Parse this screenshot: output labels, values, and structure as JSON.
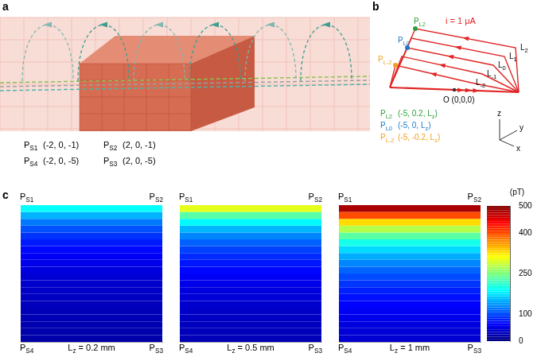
{
  "panel_labels": [
    "a",
    "b",
    "c"
  ],
  "panel_a": {
    "points": [
      {
        "label": [
          "P",
          {
            "sub": "S1"
          }
        ],
        "coord": "(-2, 0, -1)"
      },
      {
        "label": [
          "P",
          {
            "sub": "S2"
          }
        ],
        "coord": "(2, 0, -1)"
      },
      {
        "label": [
          "P",
          {
            "sub": "S4"
          }
        ],
        "coord": "(-2, 0, -5)"
      },
      {
        "label": [
          "P",
          {
            "sub": "S3"
          }
        ],
        "coord": "(2, 0, -5)"
      }
    ]
  },
  "panel_b": {
    "current": "i = 1 μA",
    "lines": [
      [
        "L",
        {
          "sub": "2"
        }
      ],
      [
        "L",
        {
          "sub": "1"
        }
      ],
      [
        "L",
        {
          "sub": "0"
        }
      ],
      [
        "L",
        {
          "sub": "-1"
        }
      ],
      [
        "L",
        {
          "sub": "-2"
        }
      ]
    ],
    "origin": "O (0,0,0)",
    "axes": [
      "x",
      "y",
      "z"
    ],
    "points": [
      {
        "label": [
          "P",
          {
            "sub": "L2"
          }
        ],
        "coord": [
          "(-5, 0.2, L",
          {
            "sub": "z"
          },
          ")"
        ],
        "color": "#2e9e3a"
      },
      {
        "label": [
          "P",
          {
            "sub": "L0"
          }
        ],
        "coord": [
          "(-5, 0, L",
          {
            "sub": "z"
          },
          ")"
        ],
        "color": "#1f78c8"
      },
      {
        "label": [
          "P",
          {
            "sub": "L-2"
          }
        ],
        "coord": [
          "(-5, -0.2, L",
          {
            "sub": "z"
          },
          ")"
        ],
        "color": "#f0a020"
      }
    ]
  },
  "chart_data": {
    "type": "heatmap",
    "xlim": [
      -2,
      2
    ],
    "ylim": [
      -5,
      -1
    ],
    "tick_labels": false,
    "corners": [
      [
        "P",
        {
          "sub": "S1"
        }
      ],
      [
        "P",
        {
          "sub": "S2"
        }
      ],
      [
        "P",
        {
          "sub": "S4"
        }
      ],
      [
        "P",
        {
          "sub": "S3"
        }
      ]
    ],
    "panels": [
      {
        "title": [
          "L",
          {
            "sub": "z"
          },
          " = 0.2 mm"
        ],
        "z": [
          -1.1,
          -1.3,
          -1.5,
          -1.7,
          -1.9,
          -2.1,
          -2.3,
          -2.5,
          -2.7,
          -2.9,
          -3.1,
          -3.3,
          -3.5,
          -3.7,
          -3.9,
          -4.1,
          -4.3,
          -4.5,
          -4.7,
          -4.9
        ],
        "values": [
          190,
          150,
          122,
          102,
          87,
          75,
          66,
          58,
          52,
          47,
          42,
          38,
          35,
          32,
          30,
          28,
          26,
          24,
          22,
          21
        ]
      },
      {
        "title": [
          "L",
          {
            "sub": "z"
          },
          " = 0.5 mm"
        ],
        "z": [
          -1.1,
          -1.3,
          -1.5,
          -1.7,
          -1.9,
          -2.1,
          -2.3,
          -2.5,
          -2.7,
          -2.9,
          -3.1,
          -3.3,
          -3.5,
          -3.7,
          -3.9,
          -4.1,
          -4.3,
          -4.5,
          -4.7,
          -4.9
        ],
        "values": [
          300,
          230,
          185,
          152,
          128,
          110,
          95,
          83,
          73,
          65,
          58,
          52,
          47,
          43,
          39,
          36,
          33,
          31,
          29,
          27
        ]
      },
      {
        "title": [
          "L",
          {
            "sub": "z"
          },
          " = 1 mm"
        ],
        "z": [
          -1.1,
          -1.3,
          -1.5,
          -1.7,
          -1.9,
          -2.1,
          -2.3,
          -2.5,
          -2.7,
          -2.9,
          -3.1,
          -3.3,
          -3.5,
          -3.7,
          -3.9,
          -4.1,
          -4.3,
          -4.5,
          -4.7,
          -4.9
        ],
        "values": [
          480,
          400,
          330,
          275,
          232,
          198,
          170,
          147,
          128,
          112,
          99,
          88,
          78,
          70,
          63,
          57,
          52,
          47,
          43,
          40
        ]
      }
    ],
    "colorbar": {
      "range": [
        0,
        500
      ],
      "ticks": [
        0,
        100,
        250,
        400,
        500
      ],
      "label": "(pT)"
    }
  }
}
